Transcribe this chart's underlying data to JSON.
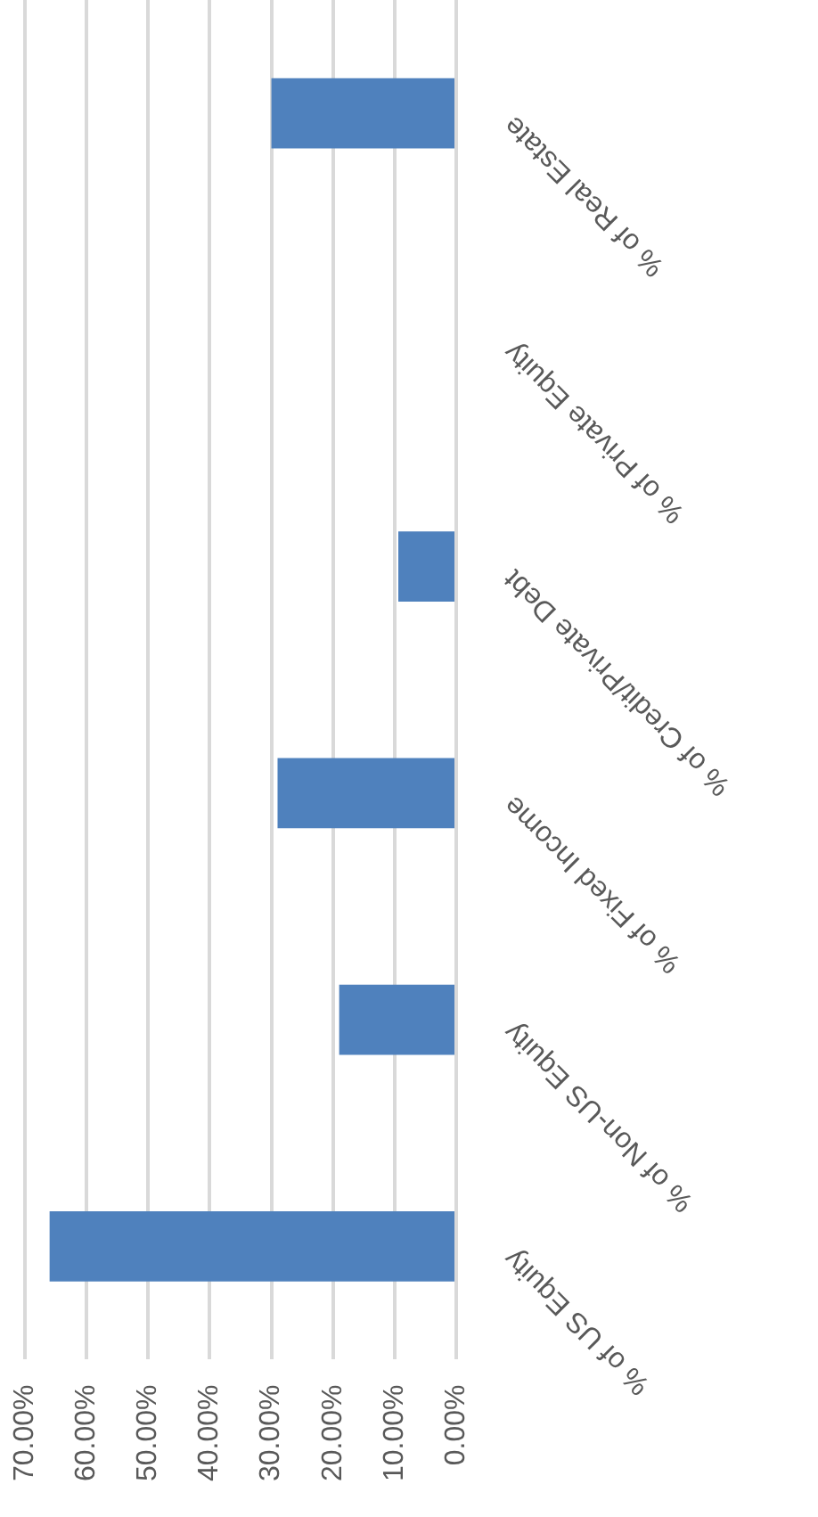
{
  "chart_data": {
    "type": "bar",
    "orientation": "horizontal",
    "categories": [
      "% of Real Estate",
      "% of Private Equity",
      "% of Credit/Private Debt",
      "% of Fixed Income",
      "% of Non-US Equity",
      "% of US Equity"
    ],
    "values": [
      30,
      0,
      9.4,
      29,
      19,
      66
    ],
    "color": "#4f81bd",
    "xlim": [
      70,
      0
    ],
    "xticks": [
      {
        "value": 70,
        "label": "70.00%"
      },
      {
        "value": 60,
        "label": "60.00%"
      },
      {
        "value": 50,
        "label": "50.00%"
      },
      {
        "value": 40,
        "label": "40.00%"
      },
      {
        "value": 30,
        "label": "30.00%"
      },
      {
        "value": 20,
        "label": "20.00%"
      },
      {
        "value": 10,
        "label": "10.00%"
      },
      {
        "value": 0,
        "label": "0.00%"
      }
    ],
    "grid": "x"
  }
}
